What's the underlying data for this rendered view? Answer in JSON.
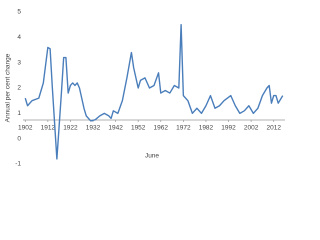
{
  "chart_data": {
    "type": "line",
    "y_label": "Annual per cent change",
    "x_label": "June",
    "x": [
      1902,
      1903,
      1905,
      1908,
      1910,
      1912,
      1913,
      1914,
      1916,
      1918,
      1919,
      1920,
      1921,
      1922,
      1923,
      1924,
      1925,
      1926,
      1928,
      1929,
      1931,
      1933,
      1935,
      1937,
      1939,
      1940,
      1941,
      1943,
      1945,
      1947,
      1949,
      1950,
      1952,
      1953,
      1955,
      1957,
      1959,
      1961,
      1962,
      1964,
      1966,
      1968,
      1970,
      1971,
      1972,
      1974,
      1976,
      1978,
      1980,
      1982,
      1984,
      1986,
      1988,
      1990,
      1993,
      1995,
      1997,
      1999,
      2001,
      2003,
      2005,
      2007,
      2009,
      2010,
      2011,
      2012,
      2013,
      2014,
      2016
    ],
    "series": [
      {
        "color": "#4a7ebb",
        "values": [
          1.6,
          1.3,
          1.5,
          1.6,
          2.2,
          3.6,
          3.55,
          2.0,
          -0.8,
          1.8,
          3.2,
          3.2,
          1.8,
          2.1,
          2.2,
          2.1,
          2.2,
          2.0,
          1.2,
          0.9,
          0.7,
          0.75,
          0.9,
          1.0,
          0.9,
          0.8,
          1.1,
          1.0,
          1.5,
          2.4,
          3.4,
          2.8,
          2.0,
          2.3,
          2.4,
          2.0,
          2.1,
          2.6,
          1.8,
          1.9,
          1.8,
          2.1,
          2.0,
          4.5,
          1.7,
          1.5,
          1.0,
          1.2,
          1.0,
          1.3,
          1.7,
          1.2,
          1.3,
          1.5,
          1.7,
          1.3,
          1.0,
          1.1,
          1.3,
          1.0,
          1.2,
          1.7,
          2.0,
          2.1,
          1.4,
          1.7,
          1.7,
          1.4,
          1.7
        ]
      }
    ],
    "xlim": [
      1901,
      2017
    ],
    "xticks": [
      1902,
      1912,
      1922,
      1932,
      1942,
      1952,
      1962,
      1972,
      1982,
      1992,
      2002,
      2012
    ],
    "ylim": [
      -1,
      5
    ],
    "yticks": [
      -1,
      0,
      1,
      2,
      3,
      4,
      5
    ],
    "grid": false
  }
}
